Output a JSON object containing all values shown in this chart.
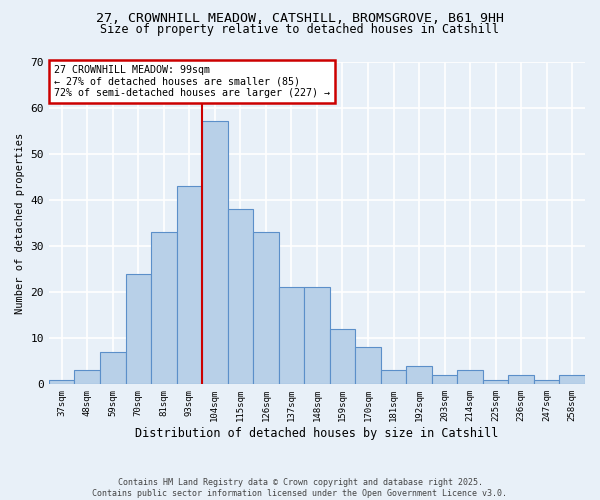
{
  "title_line1": "27, CROWNHILL MEADOW, CATSHILL, BROMSGROVE, B61 9HH",
  "title_line2": "Size of property relative to detached houses in Catshill",
  "xlabel": "Distribution of detached houses by size in Catshill",
  "ylabel": "Number of detached properties",
  "footer_line1": "Contains HM Land Registry data © Crown copyright and database right 2025.",
  "footer_line2": "Contains public sector information licensed under the Open Government Licence v3.0.",
  "bins": [
    "37sqm",
    "48sqm",
    "59sqm",
    "70sqm",
    "81sqm",
    "93sqm",
    "104sqm",
    "115sqm",
    "126sqm",
    "137sqm",
    "148sqm",
    "159sqm",
    "170sqm",
    "181sqm",
    "192sqm",
    "203sqm",
    "214sqm",
    "225sqm",
    "236sqm",
    "247sqm",
    "258sqm"
  ],
  "values": [
    1,
    3,
    7,
    24,
    33,
    43,
    57,
    38,
    33,
    21,
    21,
    12,
    8,
    3,
    4,
    2,
    3,
    1,
    2,
    1,
    2
  ],
  "bar_color": "#b8d0e8",
  "bar_edge_color": "#5b8fc9",
  "background_color": "#e8f0f8",
  "grid_color": "#ffffff",
  "vline_color": "#cc0000",
  "annotation_text": "27 CROWNHILL MEADOW: 99sqm\n← 27% of detached houses are smaller (85)\n72% of semi-detached houses are larger (227) →",
  "annotation_box_color": "#ffffff",
  "annotation_box_edge": "#cc0000",
  "ylim": [
    0,
    70
  ],
  "yticks": [
    0,
    10,
    20,
    30,
    40,
    50,
    60,
    70
  ],
  "vline_x": 5.5
}
